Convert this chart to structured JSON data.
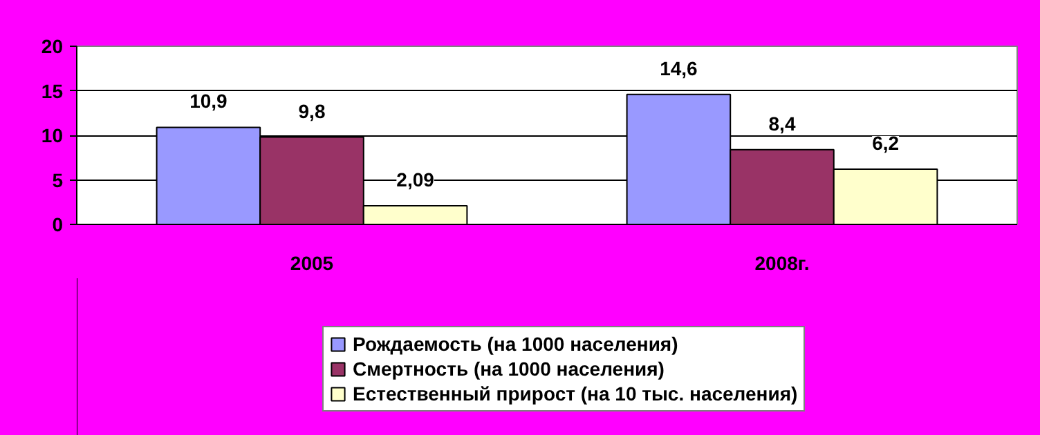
{
  "chart_data": {
    "type": "bar",
    "categories": [
      "2005",
      "2008г."
    ],
    "series": [
      {
        "name": "Рождаемость (на 1000 населения)",
        "color": "#9999ff",
        "values": [
          10.9,
          14.6
        ],
        "value_labels": [
          "10,9",
          "14,6"
        ]
      },
      {
        "name": "Смертность (на 1000 населения)",
        "color": "#993366",
        "values": [
          9.8,
          8.4
        ],
        "value_labels": [
          "9,8",
          "8,4"
        ]
      },
      {
        "name": "Естественный прирост (на 10 тыс. населения)",
        "color": "#ffffcc",
        "values": [
          2.09,
          6.2
        ],
        "value_labels": [
          "2,09",
          "6,2"
        ]
      }
    ],
    "ylim": [
      0,
      20
    ],
    "yticks": [
      0,
      5,
      10,
      15,
      20
    ],
    "grid": "y",
    "legend": "bottom"
  }
}
